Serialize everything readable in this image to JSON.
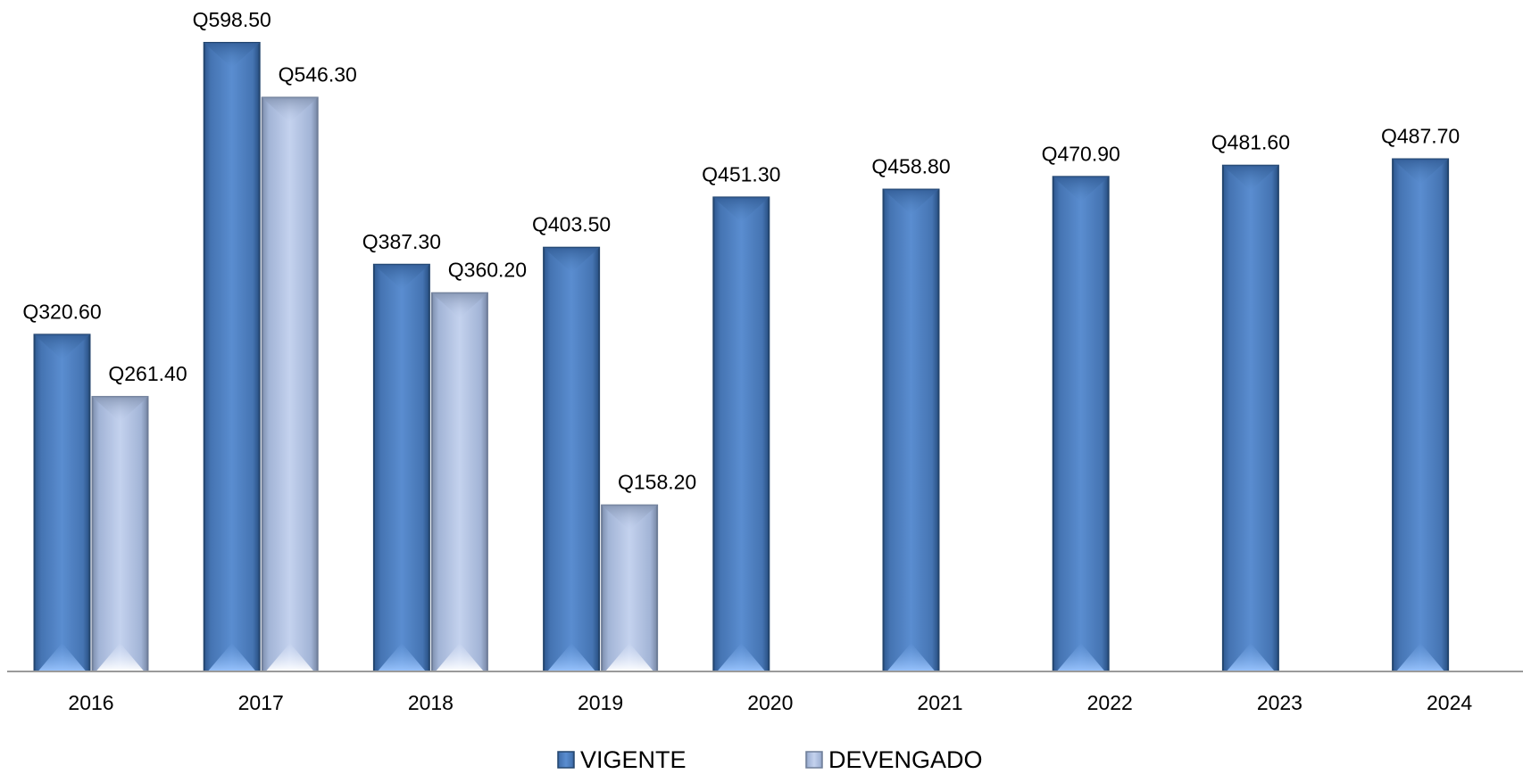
{
  "chart_data": {
    "type": "bar",
    "categories": [
      "2016",
      "2017",
      "2018",
      "2019",
      "2020",
      "2021",
      "2022",
      "2023",
      "2024"
    ],
    "series": [
      {
        "name": "VIGENTE",
        "values": [
          320.6,
          598.5,
          387.3,
          403.5,
          451.3,
          458.8,
          470.9,
          481.6,
          487.7
        ],
        "labels": [
          "Q320.60",
          "Q598.50",
          "Q387.30",
          "Q403.50",
          "Q451.30",
          "Q458.80",
          "Q470.90",
          "Q481.60",
          "Q487.70"
        ],
        "color": "#4F81BD"
      },
      {
        "name": "DEVENGADO",
        "values": [
          261.4,
          546.3,
          360.2,
          158.2,
          null,
          null,
          null,
          null,
          null
        ],
        "labels": [
          "Q261.40",
          "Q546.30",
          "Q360.20",
          "Q158.20",
          null,
          null,
          null,
          null,
          null
        ],
        "color": "#B9C9E8"
      }
    ],
    "title": "",
    "xlabel": "",
    "ylabel": "",
    "ylim": [
      0,
      600
    ],
    "grid": false,
    "legend_position": "bottom"
  }
}
